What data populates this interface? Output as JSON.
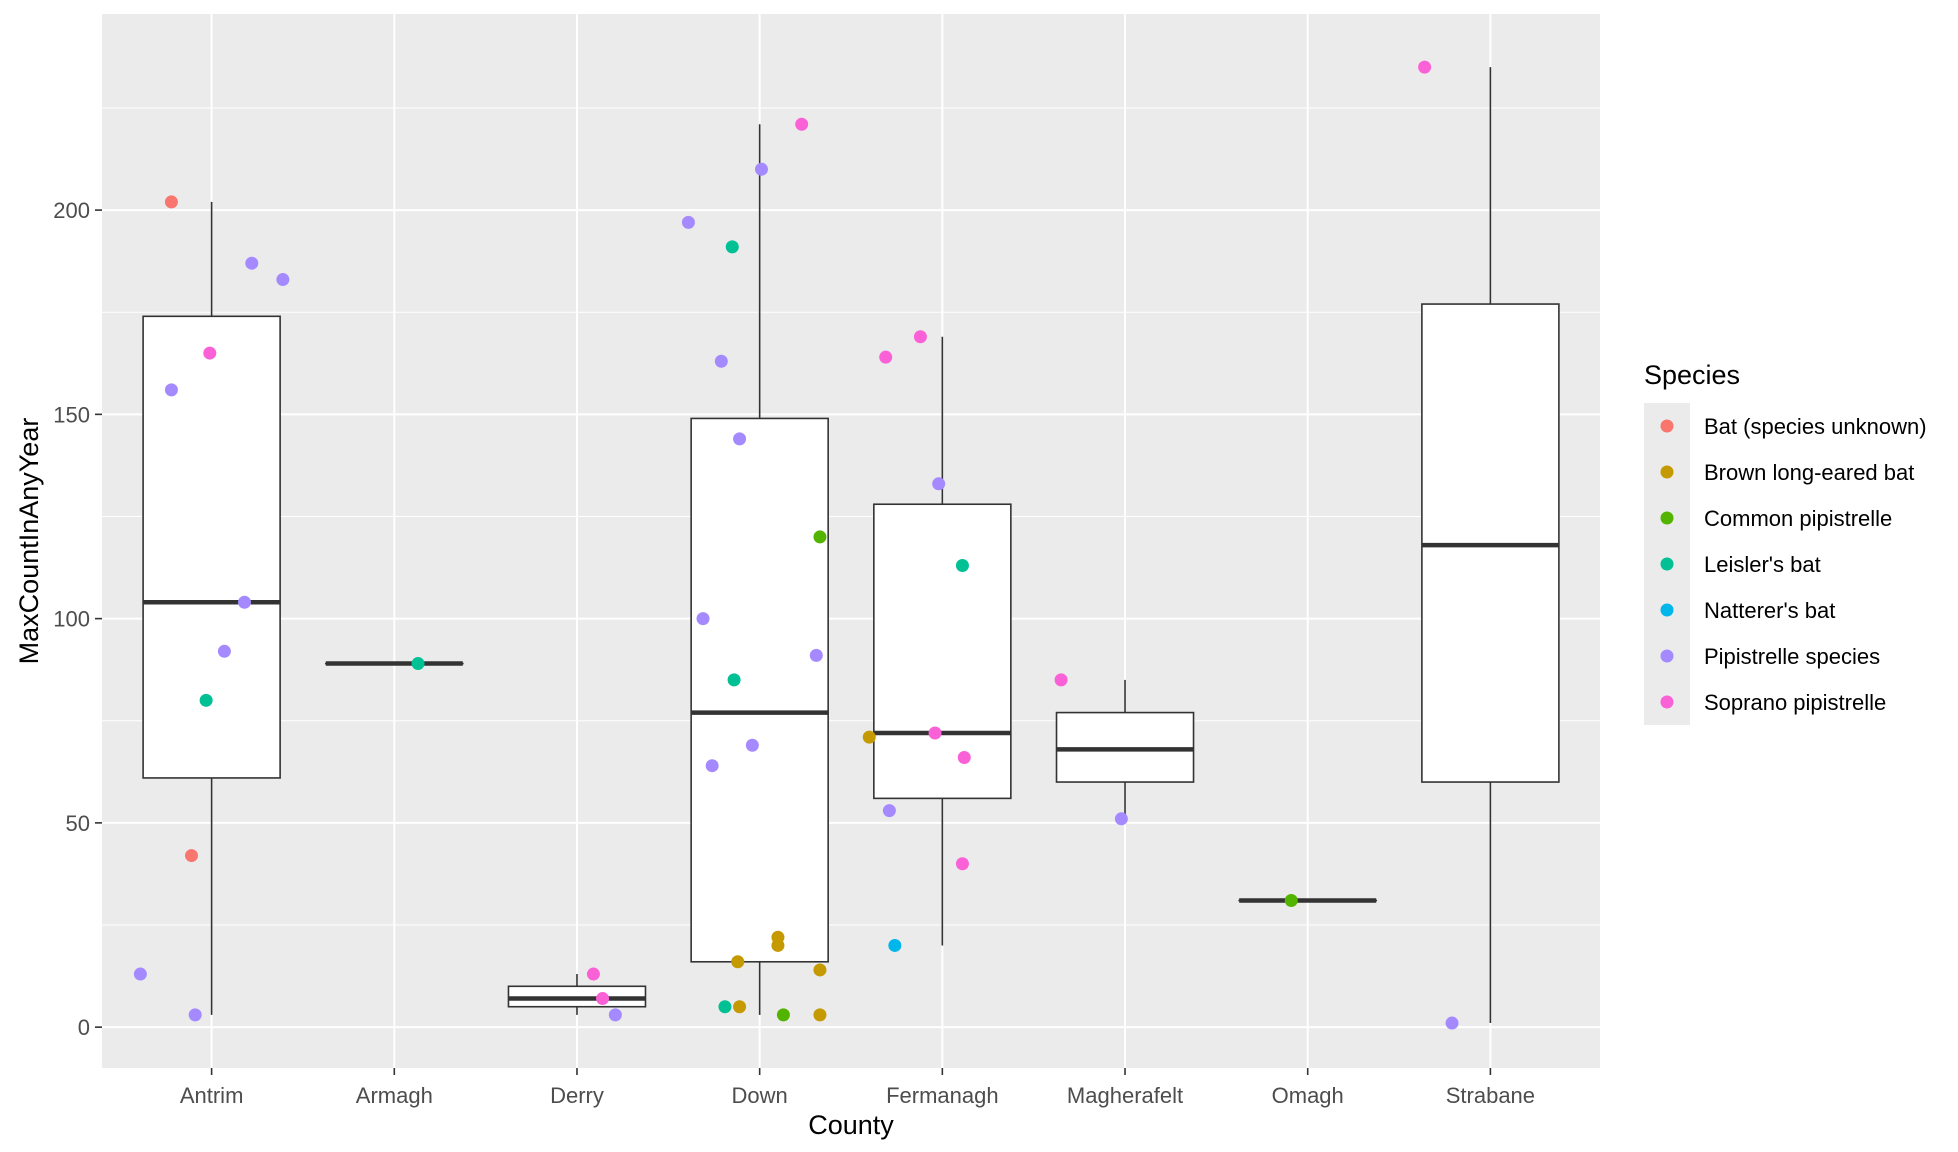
{
  "chart_data": {
    "type": "boxplot",
    "xlabel": "County",
    "ylabel": "MaxCountInAnyYear",
    "ylim": [
      -10,
      248
    ],
    "yticks": [
      0,
      50,
      100,
      150,
      200
    ],
    "categories": [
      "Antrim",
      "Armagh",
      "Derry",
      "Down",
      "Fermanagh",
      "Magherafelt",
      "Omagh",
      "Strabane"
    ],
    "boxes": [
      {
        "county": "Antrim",
        "q1": 61,
        "median": 104,
        "q3": 174,
        "whisker_low": 3,
        "whisker_high": 202
      },
      {
        "county": "Armagh",
        "q1": 89,
        "median": 89,
        "q3": 89,
        "whisker_low": 89,
        "whisker_high": 89
      },
      {
        "county": "Derry",
        "q1": 5,
        "median": 7,
        "q3": 10,
        "whisker_low": 3,
        "whisker_high": 13
      },
      {
        "county": "Down",
        "q1": 16,
        "median": 77,
        "q3": 149,
        "whisker_low": 3,
        "whisker_high": 221
      },
      {
        "county": "Fermanagh",
        "q1": 56,
        "median": 72,
        "q3": 128,
        "whisker_low": 20,
        "whisker_high": 169
      },
      {
        "county": "Magherafelt",
        "q1": 60,
        "median": 68,
        "q3": 77,
        "whisker_low": 51,
        "whisker_high": 85
      },
      {
        "county": "Omagh",
        "q1": 31,
        "median": 31,
        "q3": 31,
        "whisker_low": 31,
        "whisker_high": 31
      },
      {
        "county": "Strabane",
        "q1": 60,
        "median": 118,
        "q3": 177,
        "whisker_low": 1,
        "whisker_high": 235
      }
    ],
    "legend": {
      "title": "Species",
      "position": "right",
      "entries": [
        {
          "name": "Bat (species unknown)",
          "color": "#F8766D"
        },
        {
          "name": "Brown long-eared bat",
          "color": "#C49A00"
        },
        {
          "name": "Common pipistrelle",
          "color": "#53B400"
        },
        {
          "name": "Leisler's bat",
          "color": "#00C094"
        },
        {
          "name": "Natterer's bat",
          "color": "#00B6EB"
        },
        {
          "name": "Pipistrelle species",
          "color": "#A58AFF"
        },
        {
          "name": "Soprano pipistrelle",
          "color": "#FB61D7"
        }
      ]
    },
    "points": [
      {
        "county": "Antrim",
        "offset": -0.22,
        "y": 202,
        "species": "Bat (species unknown)"
      },
      {
        "county": "Antrim",
        "offset": -0.11,
        "y": 42,
        "species": "Bat (species unknown)"
      },
      {
        "county": "Antrim",
        "offset": -0.03,
        "y": 80,
        "species": "Leisler's bat"
      },
      {
        "county": "Antrim",
        "offset": -0.22,
        "y": 156,
        "species": "Pipistrelle species"
      },
      {
        "county": "Antrim",
        "offset": 0.22,
        "y": 187,
        "species": "Pipistrelle species"
      },
      {
        "county": "Antrim",
        "offset": 0.39,
        "y": 183,
        "species": "Pipistrelle species"
      },
      {
        "county": "Antrim",
        "offset": 0.18,
        "y": 104,
        "species": "Pipistrelle species"
      },
      {
        "county": "Antrim",
        "offset": 0.07,
        "y": 92,
        "species": "Pipistrelle species"
      },
      {
        "county": "Antrim",
        "offset": -0.39,
        "y": 13,
        "species": "Pipistrelle species"
      },
      {
        "county": "Antrim",
        "offset": -0.09,
        "y": 3,
        "species": "Pipistrelle species"
      },
      {
        "county": "Antrim",
        "offset": -0.01,
        "y": 165,
        "species": "Soprano pipistrelle"
      },
      {
        "county": "Armagh",
        "offset": 0.13,
        "y": 89,
        "species": "Leisler's bat"
      },
      {
        "county": "Derry",
        "offset": 0.09,
        "y": 13,
        "species": "Soprano pipistrelle"
      },
      {
        "county": "Derry",
        "offset": 0.14,
        "y": 7,
        "species": "Soprano pipistrelle"
      },
      {
        "county": "Derry",
        "offset": 0.21,
        "y": 3,
        "species": "Pipistrelle species"
      },
      {
        "county": "Down",
        "offset": 0.23,
        "y": 221,
        "species": "Soprano pipistrelle"
      },
      {
        "county": "Down",
        "offset": -0.39,
        "y": 197,
        "species": "Pipistrelle species"
      },
      {
        "county": "Down",
        "offset": 0.01,
        "y": 210,
        "species": "Pipistrelle species"
      },
      {
        "county": "Down",
        "offset": -0.15,
        "y": 191,
        "species": "Leisler's bat"
      },
      {
        "county": "Down",
        "offset": -0.21,
        "y": 163,
        "species": "Pipistrelle species"
      },
      {
        "county": "Down",
        "offset": -0.11,
        "y": 144,
        "species": "Pipistrelle species"
      },
      {
        "county": "Down",
        "offset": 0.33,
        "y": 120,
        "species": "Common pipistrelle"
      },
      {
        "county": "Down",
        "offset": -0.31,
        "y": 100,
        "species": "Pipistrelle species"
      },
      {
        "county": "Down",
        "offset": 0.31,
        "y": 91,
        "species": "Pipistrelle species"
      },
      {
        "county": "Down",
        "offset": -0.14,
        "y": 85,
        "species": "Leisler's bat"
      },
      {
        "county": "Down",
        "offset": -0.04,
        "y": 69,
        "species": "Pipistrelle species"
      },
      {
        "county": "Down",
        "offset": -0.26,
        "y": 64,
        "species": "Pipistrelle species"
      },
      {
        "county": "Down",
        "offset": 0.1,
        "y": 22,
        "species": "Brown long-eared bat"
      },
      {
        "county": "Down",
        "offset": 0.1,
        "y": 20,
        "species": "Brown long-eared bat"
      },
      {
        "county": "Down",
        "offset": -0.12,
        "y": 16,
        "species": "Brown long-eared bat"
      },
      {
        "county": "Down",
        "offset": 0.33,
        "y": 14,
        "species": "Brown long-eared bat"
      },
      {
        "county": "Down",
        "offset": -0.19,
        "y": 5,
        "species": "Leisler's bat"
      },
      {
        "county": "Down",
        "offset": -0.11,
        "y": 5,
        "species": "Brown long-eared bat"
      },
      {
        "county": "Down",
        "offset": 0.13,
        "y": 3,
        "species": "Common pipistrelle"
      },
      {
        "county": "Down",
        "offset": 0.33,
        "y": 3,
        "species": "Brown long-eared bat"
      },
      {
        "county": "Fermanagh",
        "offset": -0.31,
        "y": 164,
        "species": "Soprano pipistrelle"
      },
      {
        "county": "Fermanagh",
        "offset": -0.12,
        "y": 169,
        "species": "Soprano pipistrelle"
      },
      {
        "county": "Fermanagh",
        "offset": -0.02,
        "y": 133,
        "species": "Pipistrelle species"
      },
      {
        "county": "Fermanagh",
        "offset": 0.11,
        "y": 113,
        "species": "Leisler's bat"
      },
      {
        "county": "Fermanagh",
        "offset": -0.04,
        "y": 72,
        "species": "Soprano pipistrelle"
      },
      {
        "county": "Fermanagh",
        "offset": -0.4,
        "y": 71,
        "species": "Brown long-eared bat"
      },
      {
        "county": "Fermanagh",
        "offset": 0.12,
        "y": 66,
        "species": "Soprano pipistrelle"
      },
      {
        "county": "Fermanagh",
        "offset": -0.29,
        "y": 53,
        "species": "Pipistrelle species"
      },
      {
        "county": "Fermanagh",
        "offset": 0.11,
        "y": 40,
        "species": "Soprano pipistrelle"
      },
      {
        "county": "Fermanagh",
        "offset": -0.26,
        "y": 20,
        "species": "Natterer's bat"
      },
      {
        "county": "Magherafelt",
        "offset": -0.35,
        "y": 85,
        "species": "Soprano pipistrelle"
      },
      {
        "county": "Magherafelt",
        "offset": -0.02,
        "y": 51,
        "species": "Pipistrelle species"
      },
      {
        "county": "Omagh",
        "offset": -0.09,
        "y": 31,
        "species": "Common pipistrelle"
      },
      {
        "county": "Strabane",
        "offset": -0.36,
        "y": 235,
        "species": "Soprano pipistrelle"
      },
      {
        "county": "Strabane",
        "offset": -0.21,
        "y": 1,
        "species": "Pipistrelle species"
      }
    ]
  }
}
